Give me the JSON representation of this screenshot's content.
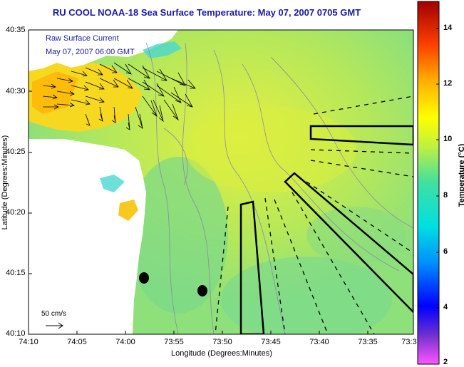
{
  "title": "RU COOL  NOAA-18  Sea Surface Temperature:  May 07, 2007 0705 GMT",
  "legend": {
    "line1": "Raw Surface Current",
    "line2": "May 07, 2007 06:00 GMT"
  },
  "scale_label": "50 cm/s",
  "axes": {
    "y_title": "Latitude (Degrees:Minutes)",
    "x_title": "Longitude (Degrees:Minutes)",
    "y_ticks": [
      "40:35",
      "40:30",
      "40:25",
      "40:20",
      "40:15",
      "40:10"
    ],
    "x_ticks": [
      "74:10",
      "74:05",
      "74:00",
      "73:55",
      "73:50",
      "73:45",
      "73:40",
      "73:35",
      "73:3"
    ]
  },
  "colorbar": {
    "title": "Temperature (°C)",
    "ticks": [
      "14",
      "12",
      "10",
      "8",
      "6",
      "4",
      "2"
    ],
    "range": [
      2,
      15
    ]
  },
  "colors": {
    "title": "#1a1aa6",
    "land": "#ffffff"
  }
}
